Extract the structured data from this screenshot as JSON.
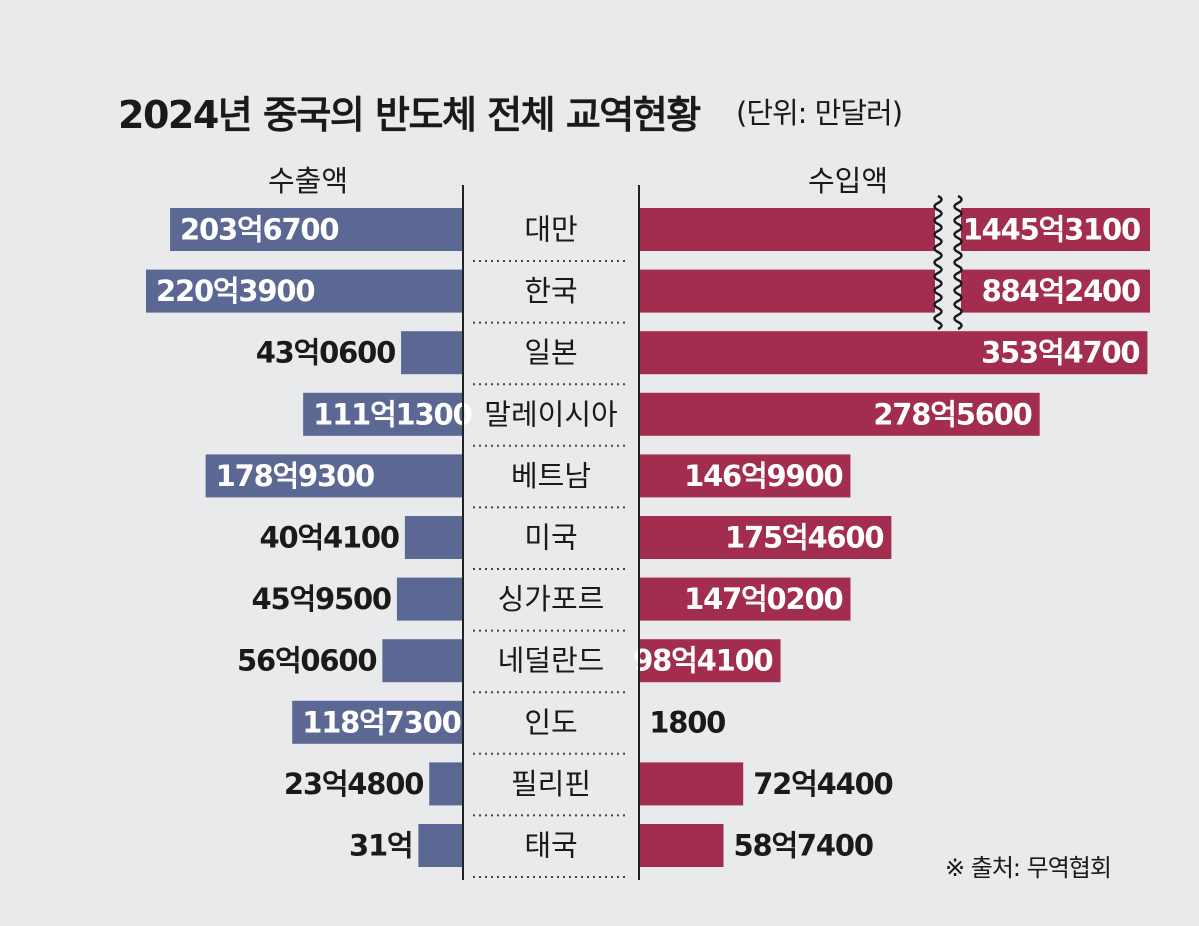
{
  "title": "2024년 중국의 반도체 전체 교역현황",
  "unit_note": "(단위: 만달러)",
  "source": "※ 출처: 무역협회",
  "colors": {
    "export_bar": "#5b6894",
    "import_bar": "#a32d4e",
    "background": "#e9eaec",
    "text": "#1a1a1a"
  },
  "chart_data": {
    "type": "bar",
    "orientation": "horizontal-diverging",
    "title": "2024년 중국의 반도체 전체 교역현황",
    "unit": "만달러",
    "categories": [
      "대만",
      "한국",
      "일본",
      "말레이시아",
      "베트남",
      "미국",
      "싱가포르",
      "네덜란드",
      "인도",
      "필리핀",
      "태국"
    ],
    "series": [
      {
        "name": "수출액",
        "values": [
          2036700,
          2203900,
          430600,
          1111300,
          1789300,
          404100,
          459500,
          560600,
          1187300,
          234800,
          310000
        ],
        "labels": [
          "203억6700",
          "220억3900",
          "43억0600",
          "111억1300",
          "178억9300",
          "40억4100",
          "45억9500",
          "56억0600",
          "118억7300",
          "23억4800",
          "31억"
        ]
      },
      {
        "name": "수입액",
        "values": [
          14453100,
          8842400,
          3534700,
          2785600,
          1469900,
          1754600,
          1470200,
          984100,
          1800,
          724400,
          587400
        ],
        "labels": [
          "1445억3100",
          "884억2400",
          "353억4700",
          "278억5600",
          "146억9900",
          "175억4600",
          "147억0200",
          "98억4100",
          "1800",
          "72억4400",
          "58억7400"
        ],
        "axis_break": [
          "대만",
          "한국"
        ]
      }
    ]
  }
}
